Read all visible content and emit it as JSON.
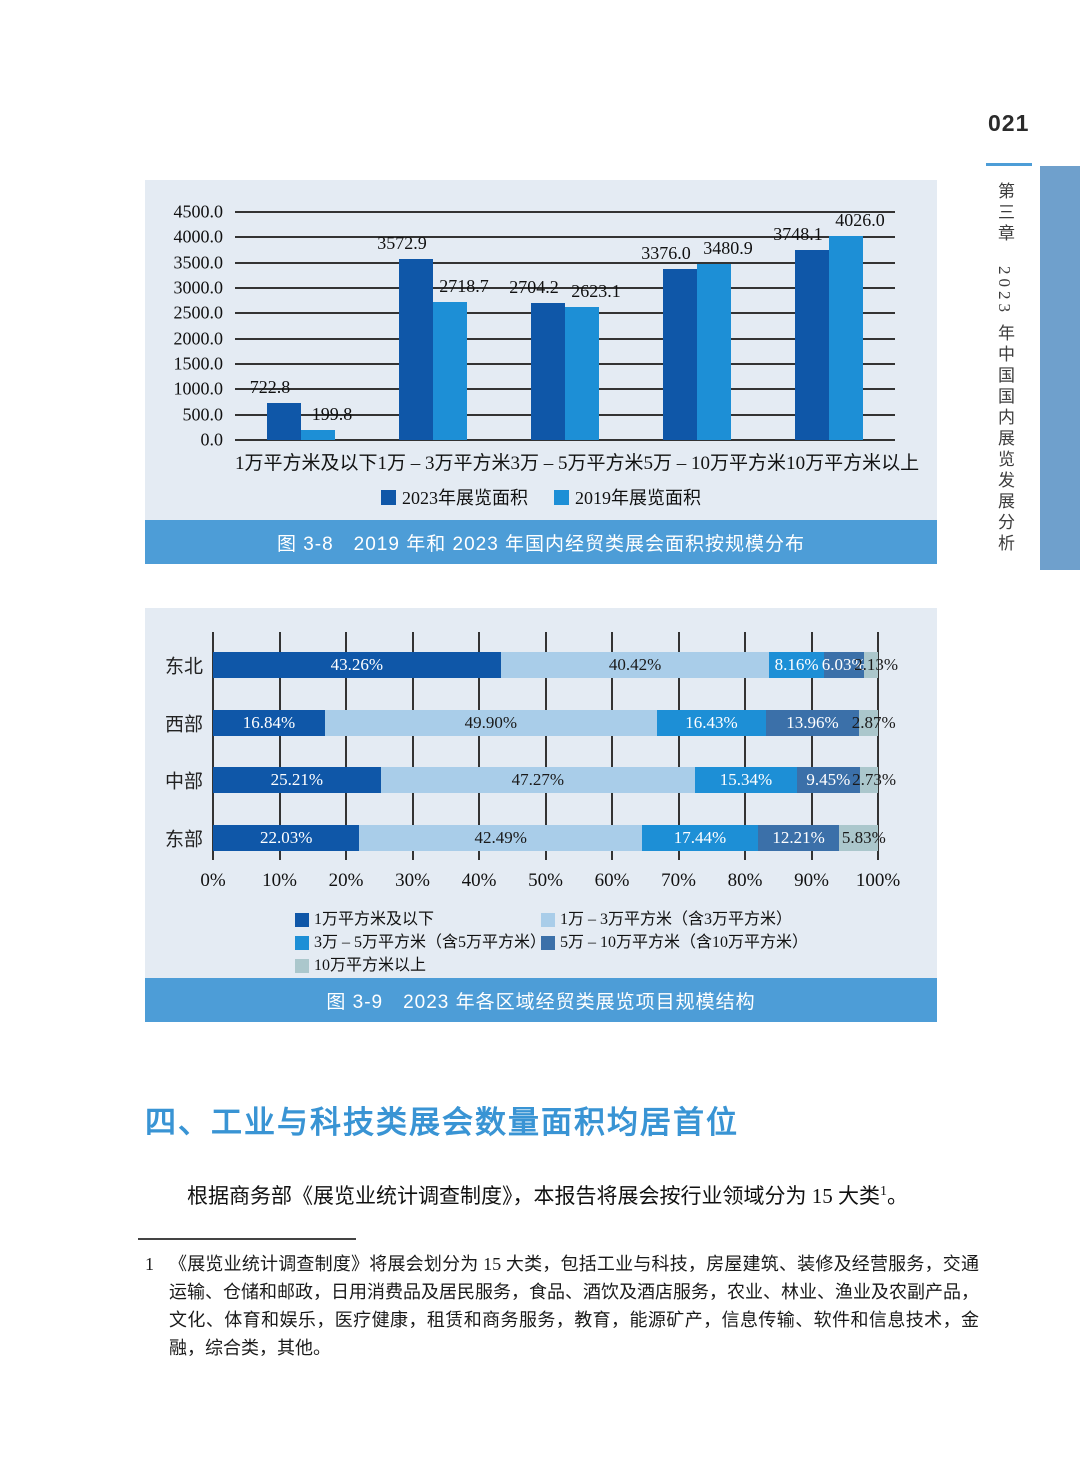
{
  "page": {
    "number": "021",
    "chapter_sidebar": "第三章　2023 年中国国内展览发展分析"
  },
  "figures": {
    "fig38_caption": "图 3-8　2019 年和 2023 年国内经贸类展会面积按规模分布",
    "fig39_caption": "图 3-9　2023 年各区域经贸类展览项目规模结构"
  },
  "section": {
    "heading": "四、工业与科技类展会数量面积均居首位",
    "paragraph_text": "根据商务部《展览业统计调查制度》，本报告将展会按行业领域分为 15 大类",
    "paragraph_superscript": "1",
    "paragraph_tail": "。"
  },
  "footnote": {
    "marker": "1",
    "text": "《展览业统计调查制度》将展会划分为 15 大类，包括工业与科技，房屋建筑、装修及经营服务，交通运输、仓储和邮政，日用消费品及居民服务，食品、酒饮及酒店服务，农业、林业、渔业及农副产品，文化、体育和娱乐，医疗健康，租赁和商务服务，教育，能源矿产，信息传输、软件和信息技术，金融，综合类，其他。"
  },
  "colors": {
    "accent_blue": "#4d9dd7",
    "panel_bg": "#e4ebf3",
    "heading_blue": "#3994d4",
    "sidebar_bar": "#6fa0cc",
    "grid_line": "#333333"
  },
  "chart_data": [
    {
      "id": "fig-3-8",
      "type": "bar",
      "title": "2019 年和 2023 年国内经贸类展会面积按规模分布",
      "categories": [
        "1万平方米及以下",
        "1万 – 3万平方米",
        "3万 – 5万平方米",
        "5万 – 10万平方米",
        "10万平方米以上"
      ],
      "series": [
        {
          "name": "2023年展览面积",
          "color": "#0f57a8",
          "values": [
            722.8,
            3572.9,
            2704.2,
            3376.0,
            3748.1
          ],
          "labels": [
            "722.8",
            "3572.9",
            "2704.2",
            "3376.0",
            "3748.1"
          ]
        },
        {
          "name": "2019年展览面积",
          "color": "#1d8fd6",
          "values": [
            199.8,
            2718.7,
            2623.1,
            3480.9,
            4026.0
          ],
          "labels": [
            "199.8",
            "2718.7",
            "2623.1",
            "3480.9",
            "4026.0"
          ]
        }
      ],
      "ylim": [
        0,
        4500
      ],
      "ytick_step": 500,
      "ytick_labels": [
        "4500.0",
        "4000.0",
        "3500.0",
        "3000.0",
        "2500.0",
        "2000.0",
        "1500.0",
        "1000.0",
        "500.0",
        "0.0"
      ],
      "grid": true,
      "legend_position": "bottom"
    },
    {
      "id": "fig-3-9",
      "type": "stacked_bar_horizontal",
      "title": "2023 年各区域经贸类展览项目规模结构",
      "categories": [
        "东北",
        "西部",
        "中部",
        "东部"
      ],
      "series": [
        {
          "name": "1万平方米及以下",
          "color": "#0f57a8",
          "label_color": "#ffffff",
          "values": [
            43.26,
            16.84,
            25.21,
            22.03
          ],
          "labels": [
            "43.26%",
            "16.84%",
            "25.21%",
            "22.03%"
          ]
        },
        {
          "name": "1万 – 3万平方米（含3万平方米）",
          "color": "#a9cde9",
          "label_color": "#1a1a1a",
          "values": [
            40.42,
            49.9,
            47.27,
            42.49
          ],
          "labels": [
            "40.42%",
            "49.90%",
            "47.27%",
            "42.49%"
          ]
        },
        {
          "name": "3万 – 5万平方米（含5万平方米）",
          "color": "#1d8fd6",
          "label_color": "#ffffff",
          "values": [
            8.16,
            16.43,
            15.34,
            17.44
          ],
          "labels": [
            "8.16%",
            "16.43%",
            "15.34%",
            "17.44%"
          ]
        },
        {
          "name": "5万 – 10万平方米（含10万平方米）",
          "color": "#3b70a9",
          "label_color": "#ffffff",
          "values": [
            6.03,
            13.96,
            9.45,
            12.21
          ],
          "labels": [
            "6.03%",
            "13.96%",
            "9.45%",
            "12.21%"
          ]
        },
        {
          "name": "10万平方米以上",
          "color": "#abc7cc",
          "label_color": "#1a1a1a",
          "values": [
            2.13,
            2.87,
            2.73,
            5.83
          ],
          "labels": [
            "2.13%",
            "2.87%",
            "2.73%",
            "5.83%"
          ]
        }
      ],
      "xlim": [
        0,
        100
      ],
      "xtick_labels": [
        "0%",
        "10%",
        "20%",
        "30%",
        "40%",
        "50%",
        "60%",
        "70%",
        "80%",
        "90%",
        "100%"
      ],
      "grid": true,
      "legend_position": "bottom"
    }
  ]
}
